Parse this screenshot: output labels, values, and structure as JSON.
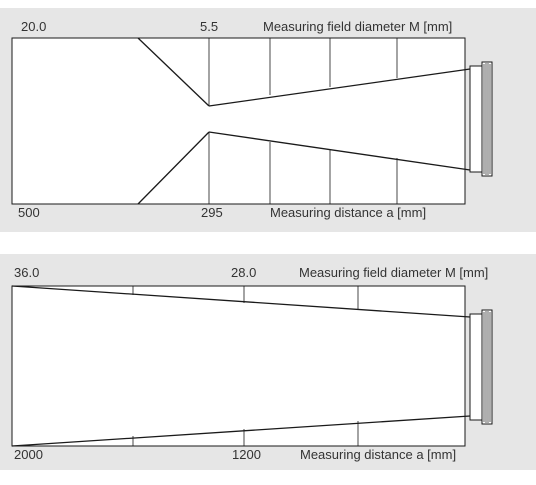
{
  "diagrams": [
    {
      "top": {
        "left_value": "20.0",
        "mid_value": "5.5",
        "caption": "Measuring field diameter M [mm]"
      },
      "bottom": {
        "left_value": "500",
        "mid_value": "295",
        "caption": "Measuring distance a [mm]"
      }
    },
    {
      "top": {
        "left_value": "36.0",
        "mid_value": "28.0",
        "caption": "Measuring field diameter M [mm]"
      },
      "bottom": {
        "left_value": "2000",
        "mid_value": "1200",
        "caption": "Measuring distance a [mm]"
      }
    }
  ],
  "colors": {
    "panel_background": "#e6e6e6",
    "plot_background": "#ffffff",
    "line": "#1a1a1a",
    "label": "#333333"
  },
  "icons": [
    "sensor-head-icon"
  ]
}
